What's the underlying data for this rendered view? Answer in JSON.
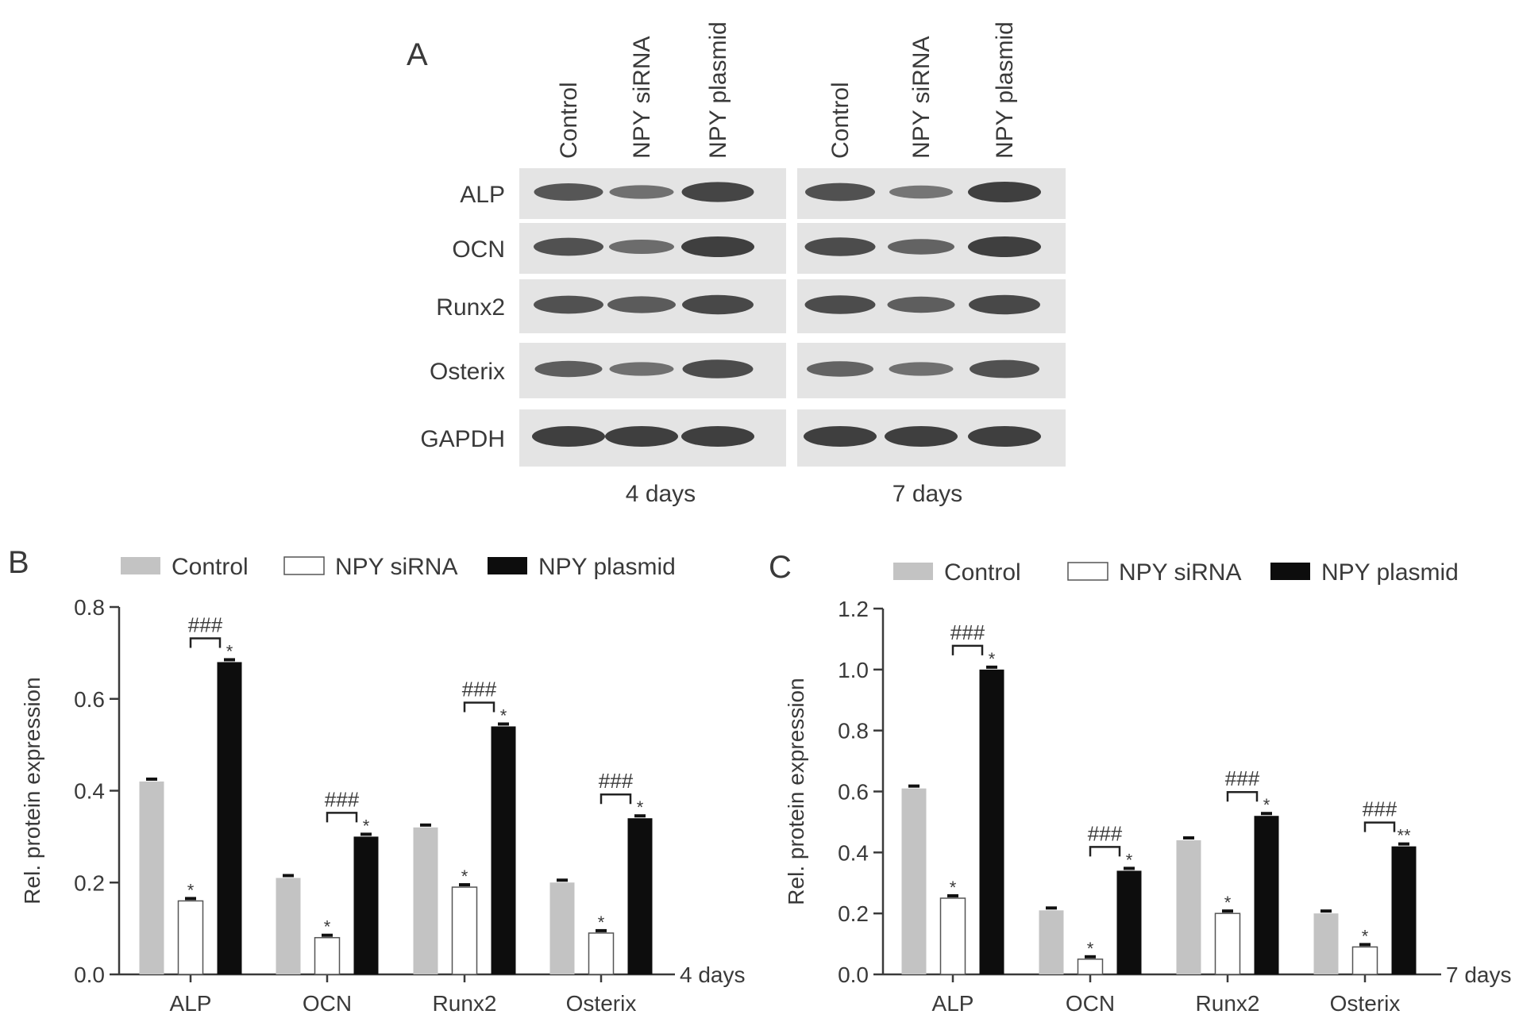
{
  "colors": {
    "control": "#c3c3c3",
    "siRNA": "#ffffff",
    "plasmid": "#0d0d0d",
    "axis": "#3a3a3a",
    "blot_bg": "#e4e4e4",
    "band": "#3f3f3f"
  },
  "panel_a": {
    "letter": "A",
    "lanes": [
      "Control",
      "NPY siRNA",
      "NPY plasmid",
      "Control",
      "NPY siRNA",
      "NPY plasmid"
    ],
    "proteins": [
      "ALP",
      "OCN",
      "Runx2",
      "Osterix",
      "GAPDH"
    ],
    "timepoints": [
      "4 days",
      "7 days"
    ],
    "band_intensity": [
      [
        0.75,
        0.45,
        0.95,
        0.8,
        0.4,
        1.0
      ],
      [
        0.8,
        0.5,
        1.0,
        0.85,
        0.6,
        1.0
      ],
      [
        0.8,
        0.7,
        0.9,
        0.85,
        0.65,
        0.9
      ],
      [
        0.65,
        0.45,
        0.85,
        0.6,
        0.45,
        0.8
      ],
      [
        1.0,
        1.0,
        1.0,
        1.0,
        1.0,
        1.0
      ]
    ]
  },
  "chart_data": [
    {
      "type": "bar",
      "panel": "B",
      "title": "",
      "xlabel": "4 days",
      "ylabel": "Rel. protein expression",
      "ylim": [
        0,
        0.8
      ],
      "yticks": [
        "0.0",
        "0.2",
        "0.4",
        "0.6",
        "0.8"
      ],
      "categories": [
        "ALP",
        "OCN",
        "Runx2",
        "Osterix"
      ],
      "series": [
        {
          "name": "Control",
          "values": [
            0.42,
            0.21,
            0.32,
            0.2
          ]
        },
        {
          "name": "NPY siRNA",
          "values": [
            0.16,
            0.08,
            0.19,
            0.09
          ]
        },
        {
          "name": "NPY plasmid",
          "values": [
            0.68,
            0.3,
            0.54,
            0.34
          ]
        }
      ],
      "annotations": {
        "siRNA_marks": [
          "*",
          "*",
          "*",
          "*"
        ],
        "plasmid_marks": [
          "*",
          "*",
          "*",
          "*"
        ],
        "bracket_labels": [
          "###",
          "###",
          "###",
          "###"
        ]
      },
      "legend": "top"
    },
    {
      "type": "bar",
      "panel": "C",
      "title": "",
      "xlabel": "7 days",
      "ylabel": "Rel. protein expression",
      "ylim": [
        0,
        1.2
      ],
      "yticks": [
        "0.0",
        "0.2",
        "0.4",
        "0.6",
        "0.8",
        "1.0",
        "1.2"
      ],
      "categories": [
        "ALP",
        "OCN",
        "Runx2",
        "Osterix"
      ],
      "series": [
        {
          "name": "Control",
          "values": [
            0.61,
            0.21,
            0.44,
            0.2
          ]
        },
        {
          "name": "NPY siRNA",
          "values": [
            0.25,
            0.05,
            0.2,
            0.09
          ]
        },
        {
          "name": "NPY plasmid",
          "values": [
            1.0,
            0.34,
            0.52,
            0.42
          ]
        }
      ],
      "annotations": {
        "siRNA_marks": [
          "*",
          "*",
          "*",
          "*"
        ],
        "plasmid_marks": [
          "*",
          "*",
          "*",
          "**"
        ],
        "bracket_labels": [
          "###",
          "###",
          "###",
          "###"
        ]
      },
      "legend": "top"
    }
  ],
  "panel_letters": {
    "b": "B",
    "c": "C"
  }
}
